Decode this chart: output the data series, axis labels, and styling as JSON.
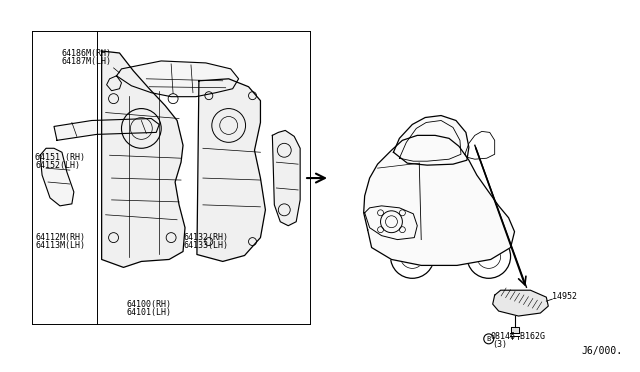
{
  "bg_color": "#ffffff",
  "line_color": "#000000",
  "fig_width": 6.4,
  "fig_height": 3.72,
  "dpi": 100,
  "labels": {
    "part1_rh": "64186M(RH)",
    "part1_lh": "64187M(LH)",
    "part2_rh": "64151 (RH)",
    "part2_lh": "64152(LH)",
    "part3_rh": "64112M(RH)",
    "part3_lh": "64113M(LH)",
    "part4_rh": "64132(RH)",
    "part4_lh": "64133(LH)",
    "part5_rh": "64100(RH)",
    "part5_lh": "64101(LH)",
    "part6": "14952",
    "bolt": "08146-B162G",
    "bolt_qty": "(3)",
    "diagram_code": "J6/000."
  },
  "font_size": 7,
  "small_font": 6,
  "diagram_font": 7
}
